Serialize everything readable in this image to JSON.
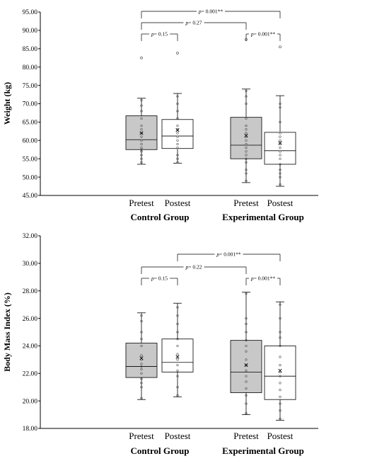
{
  "chart_data": [
    {
      "type": "boxplot",
      "ylabel": "Weight (kg)",
      "ylim": [
        45,
        95
      ],
      "yticks": [
        "45.00",
        "50.00",
        "55.00",
        "60.00",
        "65.00",
        "70.00",
        "75.00",
        "80.00",
        "85.00",
        "90.00",
        "95.00"
      ],
      "categories": [
        "Pretest",
        "Postest",
        "Pretest",
        "Postest"
      ],
      "groups": [
        "Control Group",
        "Experimental Group"
      ],
      "colors": [
        "#c8c8c8",
        "#ffffff",
        "#c8c8c8",
        "#ffffff"
      ],
      "boxes": [
        {
          "min": 53.5,
          "q1": 57.5,
          "median": 60.2,
          "q3": 66.7,
          "max": 71.5,
          "mean": 62.0,
          "outliers": [
            82.5
          ],
          "points": [
            54,
            55,
            56,
            57,
            57.5,
            58,
            59,
            60,
            61,
            62,
            63,
            64,
            66,
            68,
            69.5,
            71
          ]
        },
        {
          "min": 53.8,
          "q1": 57.8,
          "median": 61.2,
          "q3": 65.7,
          "max": 72.8,
          "mean": 62.8,
          "outliers": [
            83.8
          ],
          "points": [
            54,
            55,
            56,
            58,
            59,
            60,
            61,
            62,
            63,
            64,
            66,
            68,
            70,
            72
          ]
        },
        {
          "min": 48.5,
          "q1": 55.0,
          "median": 58.7,
          "q3": 66.3,
          "max": 74.0,
          "mean": 61.3,
          "outliers": [
            87.5
          ],
          "points": [
            49,
            51,
            52,
            54,
            55,
            56,
            57,
            58,
            59,
            60,
            61,
            62,
            63,
            64,
            66,
            70,
            72,
            73.5
          ]
        },
        {
          "min": 47.5,
          "q1": 53.5,
          "median": 57.2,
          "q3": 62.2,
          "max": 72.2,
          "mean": 59.3,
          "outliers": [
            85.5
          ],
          "points": [
            48,
            50,
            51,
            52,
            53.5,
            55,
            56,
            57,
            58,
            59,
            60,
            61,
            62,
            65,
            69,
            70
          ]
        }
      ],
      "comparisons": [
        {
          "from": 0,
          "to": 3,
          "label": "p= 0.001**",
          "level": 2
        },
        {
          "from": 0,
          "to": 2,
          "label": "p= 0.27",
          "level": 1
        },
        {
          "from": 0,
          "to": 1,
          "label": "p= 0.15",
          "level": 0
        },
        {
          "from": 2,
          "to": 3,
          "label": "p= 0.001**",
          "level": 0
        }
      ]
    },
    {
      "type": "boxplot",
      "ylabel": "Body Mass Index (%)",
      "ylim": [
        18,
        32
      ],
      "yticks": [
        "18.00",
        "20.00",
        "22.00",
        "24.00",
        "26.00",
        "28.00",
        "30.00",
        "32.00"
      ],
      "categories": [
        "Pretest",
        "Postest",
        "Pretest",
        "Postest"
      ],
      "groups": [
        "Control Group",
        "Experimental Group"
      ],
      "colors": [
        "#c8c8c8",
        "#ffffff",
        "#c8c8c8",
        "#ffffff"
      ],
      "boxes": [
        {
          "min": 20.1,
          "q1": 21.7,
          "median": 22.5,
          "q3": 24.2,
          "max": 26.4,
          "mean": 23.1,
          "outliers": [],
          "points": [
            20.2,
            21,
            21.3,
            21.6,
            22,
            22.3,
            22.5,
            22.7,
            23,
            23.3,
            24,
            24.5,
            25,
            25.8,
            26.2
          ]
        },
        {
          "min": 20.3,
          "q1": 22.1,
          "median": 22.8,
          "q3": 24.5,
          "max": 27.1,
          "mean": 23.2,
          "outliers": [],
          "points": [
            20.4,
            21,
            21.8,
            22.2,
            22.6,
            23,
            23.4,
            24,
            24.5,
            25,
            25.6,
            26.2,
            26.8
          ]
        },
        {
          "min": 19.0,
          "q1": 20.6,
          "median": 22.1,
          "q3": 24.4,
          "max": 27.9,
          "mean": 22.6,
          "outliers": [],
          "points": [
            19.1,
            19.8,
            20.4,
            20.9,
            21.4,
            21.8,
            22.2,
            22.6,
            23,
            23.6,
            24,
            24.4,
            25,
            25.6,
            26,
            27.8
          ]
        },
        {
          "min": 18.6,
          "q1": 20.1,
          "median": 21.8,
          "q3": 24.0,
          "max": 27.2,
          "mean": 22.2,
          "outliers": [],
          "points": [
            18.7,
            19.3,
            19.8,
            20.3,
            20.8,
            21.3,
            21.8,
            22.1,
            22.6,
            23.2,
            24,
            24.6,
            25,
            26,
            27
          ]
        }
      ],
      "comparisons": [
        {
          "from": 1,
          "to": 3,
          "label": "p= 0.001**",
          "level": 2
        },
        {
          "from": 0,
          "to": 2,
          "label": "p= 0.22",
          "level": 1
        },
        {
          "from": 0,
          "to": 1,
          "label": "p= 0.15",
          "level": 0
        },
        {
          "from": 2,
          "to": 3,
          "label": "p= 0.001**",
          "level": 0
        }
      ]
    }
  ]
}
